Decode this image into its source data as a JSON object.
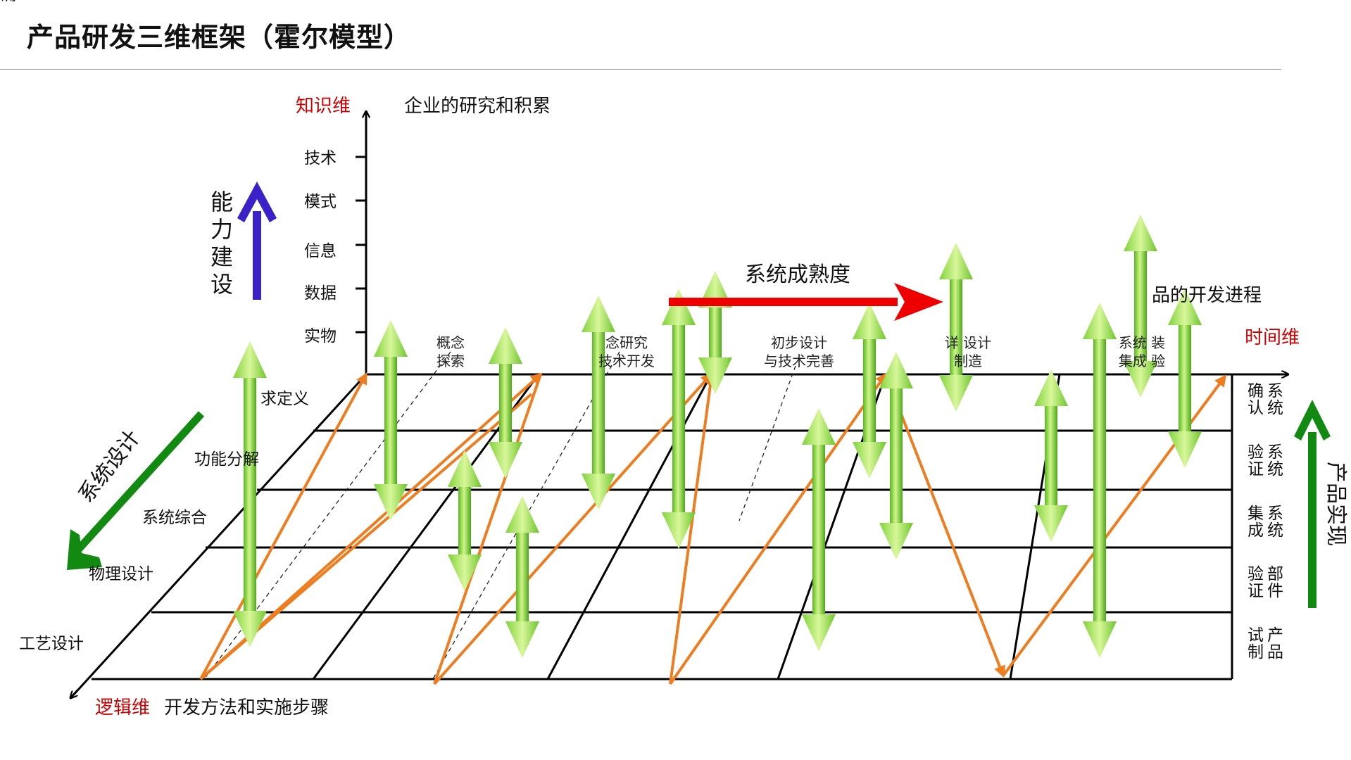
{
  "title": "产品研发三维框架（霍尔模型）",
  "colors": {
    "axis_label_red": "#cc0000",
    "orange_path": "#ed7d1f",
    "green_arrow_light": "#c4f07a",
    "green_arrow_dark": "#4cae1a",
    "blue_arrow": "#3a21c8",
    "dark_green_arrow": "#128a12",
    "red_arrow": "#ee0000"
  },
  "knowledge_axis": {
    "name": "知识维",
    "description": "企业的研究和积累",
    "levels": [
      "技术",
      "模式",
      "信息",
      "数据",
      "实物"
    ]
  },
  "capability": {
    "label_chars": [
      "能",
      "力",
      "建",
      "设"
    ],
    "icon": "up-arrow-icon"
  },
  "maturity_label": "系统成熟度",
  "time_axis": {
    "name": "时间维",
    "description_visible": "品的开发进程",
    "phases": [
      [
        "概念",
        "探索"
      ],
      [
        "念研究",
        "技术开发"
      ],
      [
        "初步设计",
        "与技术完善"
      ],
      [
        "详   设计",
        "   制造"
      ],
      [
        "系统   装",
        "集成   验"
      ]
    ]
  },
  "logic_axis": {
    "name": "逻辑维",
    "description": "开发方法和实施步骤",
    "rows": [
      "求定义",
      "功能分解",
      "系统综合",
      "物理设计",
      "工艺设计"
    ],
    "side_label": "系统设计"
  },
  "realization": {
    "label": "产品实现",
    "stages": [
      [
        "确认",
        "系统"
      ],
      [
        "验证",
        "系统"
      ],
      [
        "集成",
        "系统"
      ],
      [
        "验证",
        "部件"
      ],
      [
        "试制",
        "产品"
      ]
    ]
  }
}
